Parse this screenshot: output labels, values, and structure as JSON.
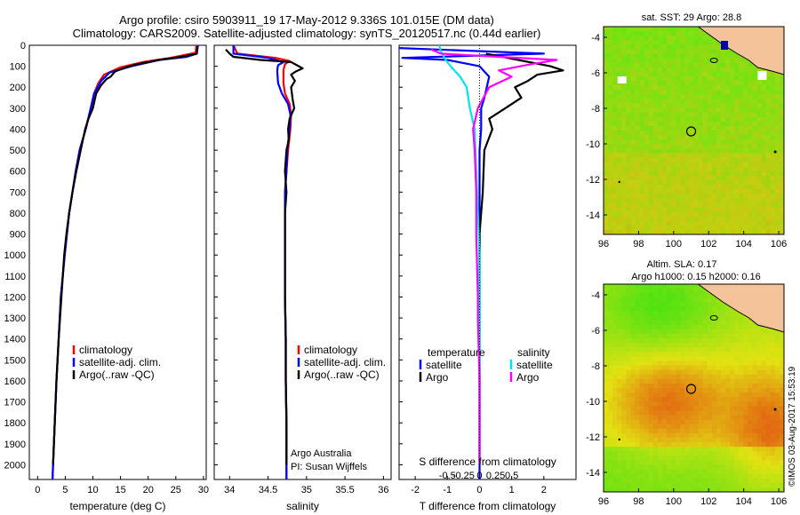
{
  "header": {
    "line1": "Argo profile: csiro 5903911_19 17-May-2012 9.336S 101.015E (DM data)",
    "line2": "Climatology: CARS2009. Satellite-adjusted climatology: synTS_20120517.nc (0.44d earlier)"
  },
  "colors": {
    "climatology": "#ff0000",
    "satellite": "#0000ff",
    "argo": "#000000",
    "sat_salinity": "#00e5e5",
    "argo_salinity": "#ff00ff",
    "land": "#f5c39a"
  },
  "depth_axis": {
    "ticks": [
      "0",
      "100",
      "200",
      "300",
      "400",
      "500",
      "600",
      "700",
      "800",
      "900",
      "1000",
      "1100",
      "1200",
      "1300",
      "1400",
      "1500",
      "1600",
      "1700",
      "1800",
      "1900",
      "2000"
    ],
    "range": [
      0,
      2070
    ]
  },
  "chart_data": [
    {
      "type": "line",
      "xlabel": "temperature (deg C)",
      "xlim": [
        -1.5,
        30.5
      ],
      "x_ticks": [
        "0",
        "5",
        "10",
        "15",
        "20",
        "25",
        "30"
      ],
      "ylim": [
        0,
        2070
      ],
      "legend": [
        "climatology",
        "satellite-adj. clim.",
        "Argo(..raw -QC)"
      ],
      "series": [
        {
          "name": "climatology",
          "points": [
            [
              28.7,
              0
            ],
            [
              28.6,
              35
            ],
            [
              24,
              60
            ],
            [
              19,
              80
            ],
            [
              15,
              105
            ],
            [
              12,
              140
            ],
            [
              11,
              180
            ],
            [
              10.2,
              230
            ],
            [
              9.7,
              300
            ],
            [
              8.7,
              400
            ],
            [
              7.6,
              500
            ],
            [
              6.9,
              600
            ],
            [
              6.3,
              700
            ],
            [
              5.7,
              800
            ],
            [
              5.3,
              900
            ],
            [
              4.9,
              1000
            ],
            [
              4.2,
              1200
            ],
            [
              3.8,
              1400
            ],
            [
              3.4,
              1600
            ],
            [
              3.1,
              1800
            ],
            [
              2.8,
              2000
            ],
            [
              2.7,
              2070
            ]
          ]
        },
        {
          "name": "satellite-adj. clim.",
          "points": [
            [
              29,
              0
            ],
            [
              28.8,
              40
            ],
            [
              27,
              55
            ],
            [
              22,
              70
            ],
            [
              17,
              100
            ],
            [
              13,
              130
            ],
            [
              11.5,
              170
            ],
            [
              10.2,
              230
            ],
            [
              9.6,
              300
            ],
            [
              8.7,
              400
            ],
            [
              7.6,
              500
            ],
            [
              6.9,
              600
            ],
            [
              6.3,
              700
            ],
            [
              5.7,
              800
            ],
            [
              5.3,
              900
            ],
            [
              4.9,
              1000
            ],
            [
              4.2,
              1200
            ],
            [
              3.8,
              1400
            ],
            [
              3.4,
              1600
            ],
            [
              3.1,
              1800
            ],
            [
              2.8,
              2000
            ],
            [
              2.7,
              2070
            ]
          ]
        },
        {
          "name": "Argo(..raw -QC)",
          "points": [
            [
              28.9,
              5
            ],
            [
              28.8,
              40
            ],
            [
              26,
              55
            ],
            [
              22,
              70
            ],
            [
              18,
              90
            ],
            [
              16,
              105
            ],
            [
              14,
              125
            ],
            [
              13.2,
              150
            ],
            [
              12.5,
              160
            ],
            [
              11.5,
              190
            ],
            [
              10.6,
              230
            ],
            [
              10,
              300
            ],
            [
              9.2,
              350
            ],
            [
              8.6,
              400
            ],
            [
              7.8,
              500
            ],
            [
              7,
              600
            ],
            [
              6.3,
              700
            ],
            [
              5.7,
              800
            ],
            [
              5.2,
              900
            ],
            [
              4.8,
              1000
            ],
            [
              4.3,
              1200
            ],
            [
              3.8,
              1400
            ],
            [
              3.4,
              1600
            ],
            [
              3.1,
              1800
            ],
            [
              2.8,
              2000
            ]
          ]
        }
      ]
    },
    {
      "type": "line",
      "xlabel": "salinity",
      "xlim": [
        33.8,
        36.1
      ],
      "x_ticks": [
        "34",
        "34.5",
        "35",
        "35.5",
        "36"
      ],
      "ylim": [
        0,
        2070
      ],
      "legend": [
        "climatology",
        "satellite-adj. clim.",
        "Argo(..raw -QC)"
      ],
      "annotation": [
        "Argo Australia",
        "PI: Susan Wijffels"
      ],
      "series": [
        {
          "name": "climatology",
          "points": [
            [
              34.05,
              0
            ],
            [
              34.1,
              40
            ],
            [
              34.6,
              60
            ],
            [
              34.78,
              75
            ],
            [
              34.72,
              90
            ],
            [
              34.7,
              120
            ],
            [
              34.7,
              180
            ],
            [
              34.72,
              230
            ],
            [
              34.78,
              280
            ],
            [
              34.8,
              330
            ],
            [
              34.79,
              400
            ],
            [
              34.76,
              500
            ],
            [
              34.74,
              600
            ],
            [
              34.72,
              700
            ],
            [
              34.72,
              900
            ],
            [
              34.72,
              1000
            ],
            [
              34.72,
              1200
            ],
            [
              34.73,
              1400
            ],
            [
              34.73,
              1600
            ],
            [
              34.74,
              1800
            ],
            [
              34.74,
              2000
            ],
            [
              34.74,
              2070
            ]
          ]
        },
        {
          "name": "satellite-adj. clim.",
          "points": [
            [
              34.05,
              0
            ],
            [
              34.05,
              40
            ],
            [
              34.5,
              60
            ],
            [
              34.7,
              80
            ],
            [
              34.63,
              95
            ],
            [
              34.62,
              120
            ],
            [
              34.63,
              180
            ],
            [
              34.68,
              230
            ],
            [
              34.76,
              280
            ],
            [
              34.79,
              330
            ],
            [
              34.78,
              400
            ],
            [
              34.75,
              500
            ],
            [
              34.74,
              600
            ],
            [
              34.72,
              700
            ],
            [
              34.72,
              900
            ],
            [
              34.72,
              1000
            ],
            [
              34.72,
              1200
            ],
            [
              34.73,
              1400
            ],
            [
              34.73,
              1600
            ],
            [
              34.74,
              1800
            ],
            [
              34.74,
              2000
            ],
            [
              34.74,
              2070
            ]
          ]
        },
        {
          "name": "Argo(..raw -QC)",
          "points": [
            [
              33.95,
              20
            ],
            [
              34.0,
              40
            ],
            [
              34.05,
              55
            ],
            [
              34.4,
              70
            ],
            [
              34.8,
              80
            ],
            [
              34.95,
              110
            ],
            [
              34.86,
              125
            ],
            [
              34.8,
              140
            ],
            [
              34.85,
              170
            ],
            [
              34.8,
              200
            ],
            [
              34.82,
              260
            ],
            [
              34.84,
              300
            ],
            [
              34.78,
              350
            ],
            [
              34.76,
              400
            ],
            [
              34.77,
              450
            ],
            [
              34.74,
              500
            ],
            [
              34.72,
              600
            ],
            [
              34.74,
              700
            ],
            [
              34.72,
              800
            ],
            [
              34.72,
              900
            ],
            [
              34.72,
              1000
            ],
            [
              34.72,
              1200
            ],
            [
              34.73,
              1400
            ],
            [
              34.73,
              1600
            ],
            [
              34.74,
              1800
            ],
            [
              34.74,
              2000
            ]
          ]
        }
      ]
    },
    {
      "type": "line",
      "xlabel": "T difference from climatology",
      "x2label": "S difference from climatology",
      "xlim": [
        -2.5,
        3
      ],
      "x_ticks": [
        "-2",
        "-1",
        "0",
        "1",
        "2"
      ],
      "x2_ticks": [
        "-0.5",
        "-0.25",
        "0",
        "0.25",
        "0.5"
      ],
      "ylim": [
        0,
        2070
      ],
      "legend": {
        "temperature_title": "temperature",
        "salinity_title": "salinity",
        "entries": [
          "satellite",
          "Argo",
          "satellite",
          "Argo"
        ]
      },
      "series": [
        {
          "name": "temperature satellite",
          "points": [
            [
              -3,
              10
            ],
            [
              2,
              40
            ],
            [
              -2.4,
              60
            ],
            [
              -1,
              70
            ],
            [
              0,
              100
            ],
            [
              0.3,
              150
            ],
            [
              0.15,
              250
            ],
            [
              0.05,
              300
            ],
            [
              0.05,
              400
            ],
            [
              0,
              500
            ],
            [
              0,
              700
            ],
            [
              0,
              1000
            ],
            [
              0,
              1300
            ],
            [
              0,
              1600
            ],
            [
              0,
              2000
            ],
            [
              0,
              2070
            ]
          ]
        },
        {
          "name": "temperature Argo",
          "points": [
            [
              0.2,
              40
            ],
            [
              1.2,
              70
            ],
            [
              2.2,
              100
            ],
            [
              2.6,
              120
            ],
            [
              1.8,
              140
            ],
            [
              1.5,
              170
            ],
            [
              1.1,
              200
            ],
            [
              1.3,
              250
            ],
            [
              0.8,
              300
            ],
            [
              0.3,
              350
            ],
            [
              0.4,
              400
            ],
            [
              0.15,
              500
            ],
            [
              0.1,
              700
            ],
            [
              0,
              900
            ],
            [
              0,
              1200
            ],
            [
              0,
              1600
            ],
            [
              0,
              2000
            ]
          ]
        },
        {
          "name": "salinity satellite",
          "points": [
            [
              -1.25,
              0
            ],
            [
              -1.2,
              30
            ],
            [
              -1.05,
              70
            ],
            [
              -0.9,
              100
            ],
            [
              -0.6,
              150
            ],
            [
              -0.4,
              200
            ],
            [
              -0.3,
              300
            ],
            [
              -0.15,
              400
            ],
            [
              -0.1,
              600
            ],
            [
              -0.05,
              800
            ],
            [
              0,
              1000
            ],
            [
              0,
              1300
            ],
            [
              0,
              1600
            ],
            [
              0,
              2000
            ]
          ]
        },
        {
          "name": "salinity Argo",
          "points": [
            [
              -1.5,
              20
            ],
            [
              -1.2,
              40
            ],
            [
              0.6,
              55
            ],
            [
              2.4,
              70
            ],
            [
              1.6,
              90
            ],
            [
              0.6,
              120
            ],
            [
              1,
              150
            ],
            [
              0.3,
              200
            ],
            [
              -0.05,
              300
            ],
            [
              -0.2,
              400
            ],
            [
              -0.15,
              500
            ],
            [
              -0.1,
              700
            ],
            [
              -0.1,
              900
            ],
            [
              -0.05,
              1200
            ],
            [
              -0.05,
              1300
            ],
            [
              0,
              1600
            ],
            [
              0,
              2000
            ]
          ]
        }
      ]
    },
    {
      "type": "heatmap",
      "title": "sat. SST: 29 Argo: 28.8",
      "x_ticks": [
        "96",
        "98",
        "100",
        "102",
        "104",
        "106"
      ],
      "y_ticks": [
        "-4",
        "-6",
        "-8",
        "-10",
        "-12",
        "-14"
      ],
      "xlim": [
        96,
        106.3
      ],
      "ylim": [
        -15.1,
        -3.4
      ],
      "marker": {
        "lon": 101.0,
        "lat": -9.3
      }
    },
    {
      "type": "heatmap",
      "title_lines": [
        "Altim. SLA: 0.17",
        "Argo h1000: 0.15 h2000: 0.16"
      ],
      "x_ticks": [
        "96",
        "98",
        "100",
        "102",
        "104",
        "106"
      ],
      "y_ticks": [
        "-4",
        "-6",
        "-8",
        "-10",
        "-12",
        "-14"
      ],
      "xlim": [
        96,
        106.3
      ],
      "ylim": [
        -15.1,
        -3.4
      ],
      "marker": {
        "lon": 101.0,
        "lat": -9.3
      }
    }
  ],
  "footer": {
    "stamp": "©IMOS 03-Aug-2017 15:53:19"
  }
}
